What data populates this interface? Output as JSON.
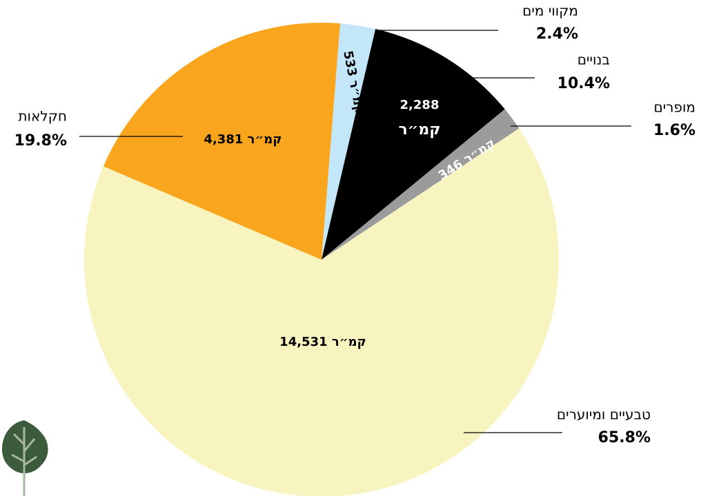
{
  "chart_data": {
    "type": "pie",
    "categories": [
      "מקווי מים",
      "בנויים",
      "מופרים",
      "טבעיים ומיוערים",
      "חקלאות"
    ],
    "values": [
      2.4,
      10.4,
      1.6,
      65.8,
      19.8
    ],
    "value_labels": [
      "2.4%",
      "10.4%",
      "1.6%",
      "65.8%",
      "19.8%"
    ],
    "area_labels": [
      "533 קמ״ר",
      "2,288 קמ״ר",
      "346 קמ״ר",
      "14,531 קמ״ר",
      "4,381 קמ״ר"
    ],
    "colors": [
      "#c3e6f8",
      "#000000",
      "#9b9b9b",
      "#f8f4bf",
      "#f9a61e"
    ],
    "start_angle": 4.5
  }
}
